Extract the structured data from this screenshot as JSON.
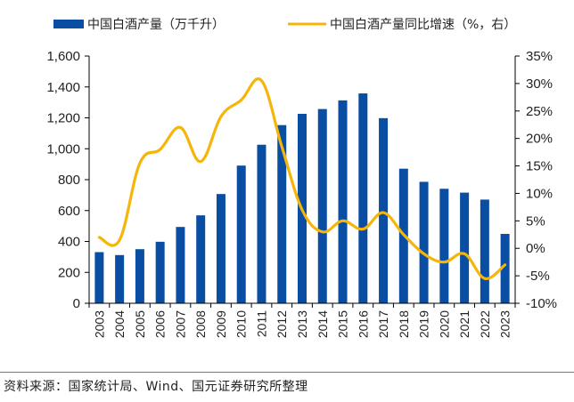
{
  "chart_data": {
    "type": "bar",
    "categories": [
      "2003",
      "2004",
      "2005",
      "2006",
      "2007",
      "2008",
      "2009",
      "2010",
      "2011",
      "2012",
      "2013",
      "2014",
      "2015",
      "2016",
      "2017",
      "2018",
      "2019",
      "2020",
      "2021",
      "2022",
      "2023"
    ],
    "series": [
      {
        "name": "中国白酒产量（万千升）",
        "type": "bar",
        "axis": "left",
        "color": "#0a4ea3",
        "values": [
          331,
          312,
          350,
          398,
          494,
          569,
          707,
          891,
          1026,
          1153,
          1226,
          1257,
          1313,
          1358,
          1198,
          871,
          786,
          741,
          716,
          671,
          449
        ]
      },
      {
        "name": "中国白酒产量同比增速（%，右）",
        "type": "line",
        "axis": "right",
        "color": "#f5b50a",
        "values": [
          2.0,
          1.5,
          15.5,
          18.0,
          22.0,
          15.8,
          24.0,
          27.0,
          30.5,
          18.5,
          7.0,
          3.0,
          5.0,
          3.5,
          6.5,
          2.5,
          -1.0,
          -2.5,
          -1.0,
          -5.5,
          -3.0
        ]
      }
    ],
    "y_left": {
      "min": 0,
      "max": 1600,
      "step": 200
    },
    "y_right": {
      "min": -10,
      "max": 35,
      "step": 5,
      "suffix": "%"
    },
    "legend_position": "top",
    "grid": false
  },
  "source_text": "资料来源：国家统计局、Wind、国元证券研究所整理"
}
